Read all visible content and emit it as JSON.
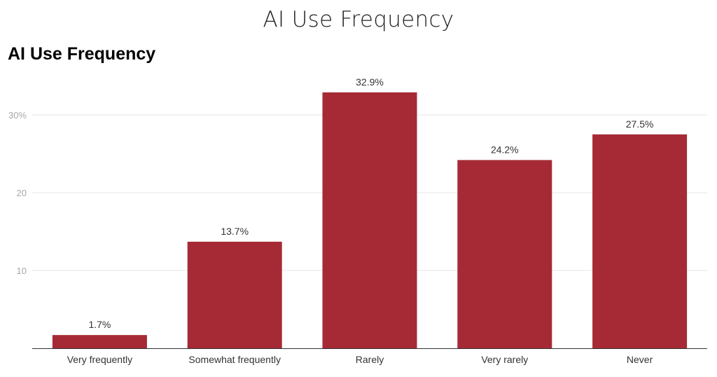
{
  "header": {
    "title": "AI Use Frequency"
  },
  "chart_data": {
    "type": "bar",
    "title": "AI Use Frequency",
    "xlabel": "",
    "ylabel": "",
    "categories": [
      "Very frequently",
      "Somewhat frequently",
      "Rarely",
      "Very rarely",
      "Never"
    ],
    "values": [
      1.7,
      13.7,
      32.9,
      24.2,
      27.5
    ],
    "data_labels": [
      "1.7%",
      "13.7%",
      "32.9%",
      "24.2%",
      "27.5%"
    ],
    "ylim": [
      0,
      35
    ],
    "yticks": [
      {
        "value": 10,
        "label": "10"
      },
      {
        "value": 20,
        "label": "20"
      },
      {
        "value": 30,
        "label": "30%"
      }
    ],
    "grid": true,
    "bar_color": "#a52a35",
    "gridline_color": "#e6e6e6",
    "axis_color": "#333333"
  }
}
